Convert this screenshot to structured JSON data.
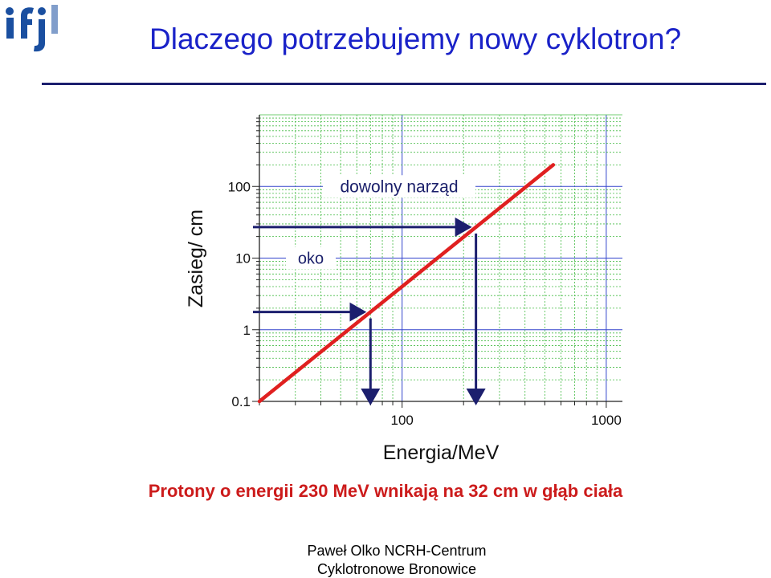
{
  "header": {
    "title": "Dlaczego potrzebujemy nowy cyklotron?",
    "logo": "ifj"
  },
  "chart_data": {
    "type": "line",
    "xlabel": "Energia/MeV",
    "ylabel": "Zasieg/ cm",
    "x_scale": "log",
    "y_scale": "log",
    "xlim": [
      20,
      1200
    ],
    "ylim": [
      0.1,
      1000
    ],
    "x_tick_labels": [
      "100",
      "1000"
    ],
    "y_tick_labels": [
      "0.1",
      "1",
      "10",
      "100"
    ],
    "grid": true,
    "series": [
      {
        "x": [
          20,
          550
        ],
        "y": [
          0.1,
          200
        ],
        "color": "#e02020"
      }
    ],
    "annotations": [
      {
        "text": "oko",
        "y": 10
      },
      {
        "text": "dowolny narząd",
        "y": 100
      }
    ],
    "markers": [
      {
        "energy": 70,
        "range": 4
      },
      {
        "energy": 230,
        "range": 32
      }
    ]
  },
  "caption": "Protony o energii 230 MeV wnikają na 32 cm w głąb ciała",
  "footer": {
    "line1": "Paweł Olko  NCRH-Centrum",
    "line2": "Cyklotronowe Bronowice"
  },
  "colors": {
    "title": "#1a22c8",
    "rule": "#1c1f6e",
    "curve": "#e02020",
    "arrows": "#1c1f6e",
    "grid": "#44bb44",
    "major_grid": "#3344cc",
    "caption": "#cc1b1b"
  }
}
